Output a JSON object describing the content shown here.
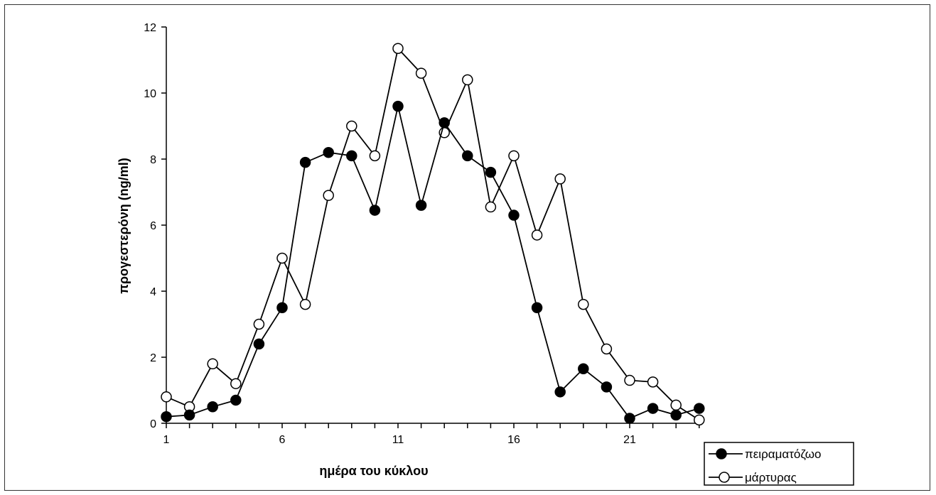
{
  "chart_data": {
    "type": "line",
    "title": "",
    "xlabel": "ημέρα του κύκλου",
    "ylabel": "προγεστερόνη (ng/ml)",
    "xlim": [
      1,
      24
    ],
    "ylim": [
      0,
      12
    ],
    "xticks": [
      1,
      6,
      11,
      16,
      21
    ],
    "yticks": [
      0,
      2,
      4,
      6,
      8,
      10,
      12
    ],
    "grid": false,
    "legend_position": "bottom-right",
    "series": [
      {
        "name": "πειραματόζωο",
        "marker": "filled-circle",
        "color": "#000000",
        "x": [
          1,
          2,
          3,
          4,
          5,
          6,
          7,
          8,
          9,
          10,
          11,
          12,
          13,
          14,
          15,
          16,
          17,
          18,
          19,
          20,
          21,
          22,
          23,
          24
        ],
        "y": [
          0.2,
          0.25,
          0.5,
          0.7,
          2.4,
          3.5,
          7.9,
          8.2,
          8.1,
          6.45,
          9.6,
          6.6,
          9.1,
          8.1,
          7.6,
          6.3,
          3.5,
          0.95,
          1.65,
          1.1,
          0.15,
          0.45,
          0.25,
          0.45
        ]
      },
      {
        "name": "μάρτυρας",
        "marker": "open-circle",
        "color": "#000000",
        "x": [
          1,
          2,
          3,
          4,
          5,
          6,
          7,
          8,
          9,
          10,
          11,
          12,
          13,
          14,
          15,
          16,
          17,
          18,
          19,
          20,
          21,
          22,
          23,
          24
        ],
        "y": [
          0.8,
          0.5,
          1.8,
          1.2,
          3.0,
          5.0,
          3.6,
          6.9,
          9.0,
          8.1,
          11.35,
          10.6,
          8.8,
          10.4,
          6.55,
          8.1,
          5.7,
          7.4,
          3.6,
          2.25,
          1.3,
          1.25,
          0.55,
          0.1
        ]
      }
    ]
  }
}
